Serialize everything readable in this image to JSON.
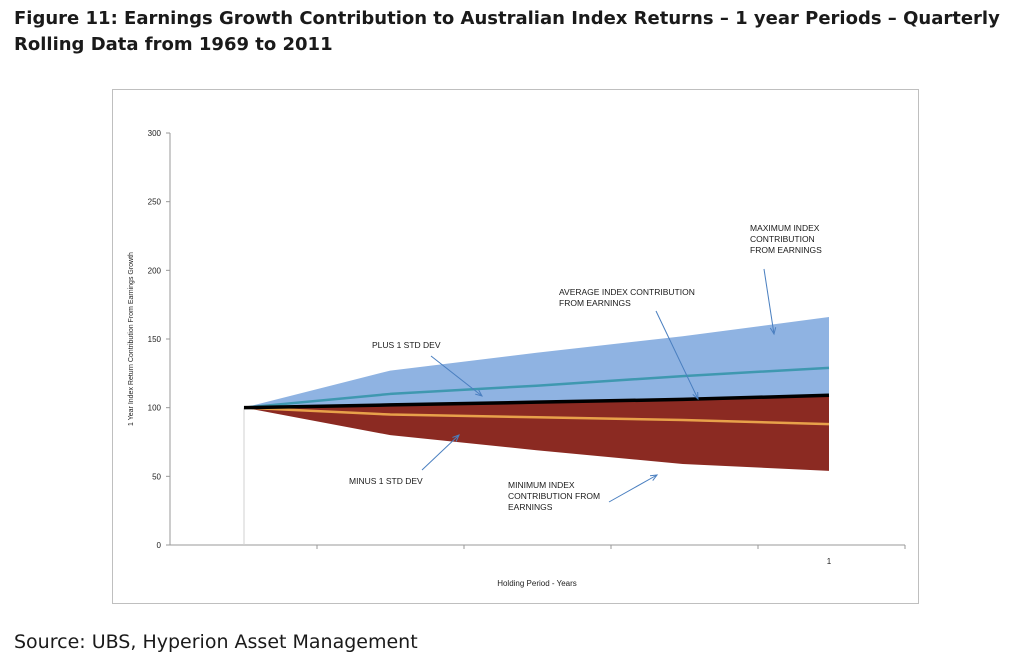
{
  "figure_title": "Figure 11: Earnings Growth Contribution to Australian Index Returns – 1 year Periods – Quarterly Rolling Data from 1969 to 2011",
  "source": "Source: UBS, Hyperion Asset Management",
  "colors": {
    "band_upper": "#8fb3e2",
    "band_lower": "#8b2a22",
    "plus_1_std": "#3f98b0",
    "average": "#000000",
    "minus_1_std": "#e8a14a",
    "arrow": "#4a7fc0"
  },
  "chart_data": {
    "type": "area",
    "title": "",
    "xlabel": "Holding Period - Years",
    "ylabel": "1 Year Index Return Contribution From Earnings Growth",
    "ylim": [
      0,
      300
    ],
    "y_ticks": [
      "0",
      "50",
      "100",
      "150",
      "200",
      "250",
      "300"
    ],
    "x_tick_labels": [
      {
        "x": 1,
        "label": "1"
      }
    ],
    "x": [
      0,
      0.25,
      0.5,
      0.75,
      1
    ],
    "series": [
      {
        "key": "max",
        "values": [
          100,
          127,
          140,
          152,
          166
        ]
      },
      {
        "key": "plus1",
        "values": [
          100,
          110,
          116,
          123,
          129
        ]
      },
      {
        "key": "avg",
        "values": [
          100,
          102,
          104,
          106,
          109
        ]
      },
      {
        "key": "minus1",
        "values": [
          100,
          95,
          93,
          91,
          88
        ]
      },
      {
        "key": "min",
        "values": [
          100,
          80,
          69,
          59,
          54
        ]
      }
    ],
    "annotations": [
      {
        "key": "max",
        "lines": [
          "MAXIMUM INDEX",
          "CONTRIBUTION",
          "FROM EARNINGS"
        ]
      },
      {
        "key": "avg",
        "lines": [
          "AVERAGE INDEX CONTRIBUTION",
          "FROM EARNINGS"
        ]
      },
      {
        "key": "plus1",
        "lines": [
          "PLUS 1 STD DEV"
        ]
      },
      {
        "key": "minus1",
        "lines": [
          "MINUS 1 STD DEV"
        ]
      },
      {
        "key": "min",
        "lines": [
          "MINIMUM INDEX",
          "CONTRIBUTION FROM",
          "EARNINGS"
        ]
      }
    ]
  }
}
